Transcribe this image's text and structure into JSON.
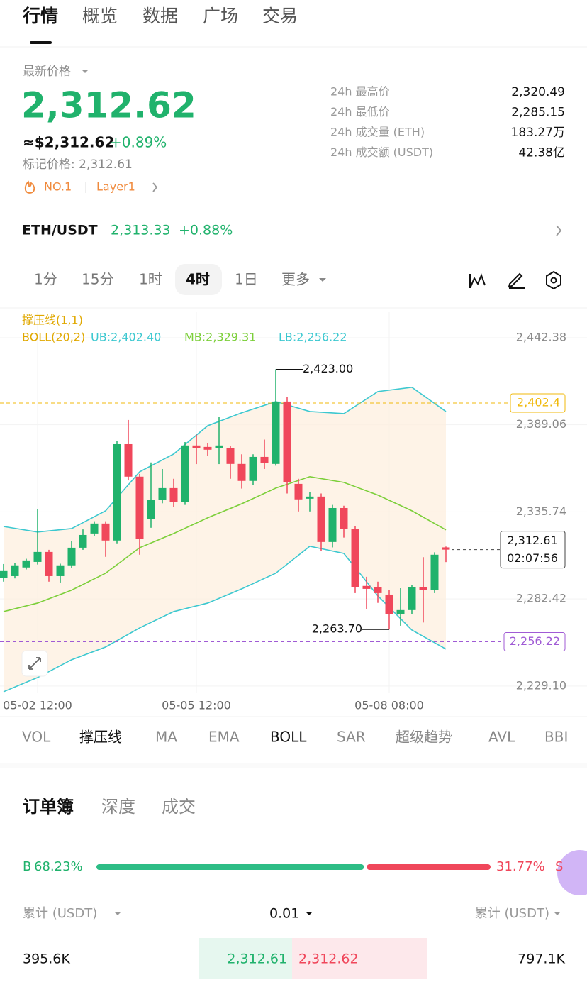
{
  "nav_tabs": [
    "行情",
    "概览",
    "数据",
    "广场",
    "交易"
  ],
  "ticker": {
    "label": "最新价格",
    "price": "2,312.62",
    "usd": "≈$2,312.62",
    "change": "+0.89%",
    "mark_price": "标记价格: 2,312.61",
    "rank": "NO.1",
    "tag": "Layer1"
  },
  "stats": [
    {
      "label": "24h 最高价",
      "value": "2,320.49"
    },
    {
      "label": "24h 最低价",
      "value": "2,285.15"
    },
    {
      "label": "24h 成交量 (ETH)",
      "value": "183.27万"
    },
    {
      "label": "24h 成交额 (USDT)",
      "value": "42.38亿"
    }
  ],
  "pair": {
    "name": "ETH/USDT",
    "price": "2,313.33",
    "change": "+0.88%"
  },
  "timeframes": [
    "1分",
    "15分",
    "1时",
    "4时",
    "1日",
    "更多"
  ],
  "chart_data": {
    "type": "candlestick",
    "legend": [
      "撑压线(1,1)",
      "BOLL(20,2)",
      "UB:2,402.40",
      "MB:2,329.31",
      "LB:2,256.22"
    ],
    "open": [
      2295.1,
      2296.4,
      2301.7,
      2305.1,
      2311.2,
      2296.4,
      2303.0,
      2313.8,
      2322.5,
      2328.6,
      2318.2,
      2377.2,
      2357.3,
      2331.2,
      2342.9,
      2350.3,
      2341.6,
      2376.4,
      2375.5,
      2374.6,
      2374.6,
      2365.1,
      2354.7,
      2369.4,
      2365.1,
      2403.3,
      2352.9,
      2343.8,
      2345.1,
      2317.3,
      2338.1,
      2325.1,
      2290.4,
      2289.5,
      2285.1,
      2273.0,
      2275.6,
      2289.5,
      2287.8,
      2314.0
    ],
    "high": [
      2303.8,
      2304.5,
      2307.0,
      2337.3,
      2312.5,
      2304.0,
      2318.0,
      2325.0,
      2330.0,
      2330.0,
      2379.0,
      2392.0,
      2359.0,
      2366.0,
      2362.0,
      2356.0,
      2378.5,
      2383.0,
      2378.0,
      2393.7,
      2376.0,
      2371.0,
      2371.0,
      2380.0,
      2423.0,
      2406.0,
      2356.0,
      2348.0,
      2347.0,
      2340.0,
      2339.5,
      2327.0,
      2296.0,
      2293.0,
      2288.0,
      2289.0,
      2291.0,
      2308.0,
      2311.0,
      2314.5
    ],
    "low": [
      2293.0,
      2295.0,
      2300.5,
      2303.5,
      2293.0,
      2292.5,
      2301.5,
      2312.5,
      2321.0,
      2308.2,
      2316.5,
      2355.0,
      2309.5,
      2326.0,
      2341.0,
      2338.6,
      2340.0,
      2365.0,
      2370.0,
      2365.0,
      2356.0,
      2350.0,
      2352.0,
      2362.0,
      2364.0,
      2347.0,
      2336.0,
      2336.0,
      2312.0,
      2314.0,
      2320.0,
      2286.0,
      2276.0,
      2280.0,
      2263.7,
      2266.0,
      2273.0,
      2268.0,
      2286.0,
      2305.0
    ],
    "close": [
      2299.5,
      2303.0,
      2306.0,
      2311.2,
      2296.4,
      2303.0,
      2313.8,
      2321.6,
      2328.6,
      2318.2,
      2377.2,
      2357.3,
      2319.0,
      2342.9,
      2350.3,
      2341.6,
      2376.4,
      2374.6,
      2373.8,
      2376.4,
      2365.1,
      2354.7,
      2369.4,
      2365.9,
      2403.3,
      2353.8,
      2343.4,
      2345.1,
      2317.3,
      2338.1,
      2325.1,
      2289.5,
      2288.6,
      2286.0,
      2273.0,
      2275.6,
      2289.5,
      2287.8,
      2309.5,
      2312.61
    ],
    "up_color": "#20b26c",
    "down_color": "#f0475b",
    "boll": {
      "x": [
        0,
        3,
        6,
        9,
        12,
        15,
        18,
        21,
        24,
        27,
        30,
        33,
        36,
        39
      ],
      "upper": [
        2326.8,
        2323.4,
        2325.5,
        2336.4,
        2360.3,
        2371.2,
        2388.5,
        2396.4,
        2403.3,
        2397.2,
        2395.9,
        2409.4,
        2412.0,
        2397.2
      ],
      "middle": [
        2274.7,
        2279.9,
        2287.8,
        2298.2,
        2313.8,
        2322.5,
        2332.1,
        2340.7,
        2350.3,
        2357.3,
        2353.8,
        2346.0,
        2336.4,
        2324.7
      ],
      "lower": [
        2225.6,
        2234.3,
        2245.2,
        2253.0,
        2264.7,
        2274.7,
        2279.9,
        2288.6,
        2298.2,
        2314.7,
        2310.3,
        2284.3,
        2263.4,
        2251.7
      ],
      "band_color": "#3cc8d0",
      "mid_color": "#7ccf3a"
    },
    "ylim": [
      2224.7,
      2458.0
    ],
    "yticks": [
      {
        "value": 2442.38,
        "label": "2,442.38"
      },
      {
        "value": 2389.06,
        "label": "2,389.06"
      },
      {
        "value": 2335.74,
        "label": "2,335.74"
      },
      {
        "value": 2282.42,
        "label": "2,282.42"
      },
      {
        "value": 2229.1,
        "label": "2,229.10"
      }
    ],
    "xticks": [
      {
        "value": 3,
        "label": "05-02 12:00"
      },
      {
        "value": 17,
        "label": "05-05 12:00"
      },
      {
        "value": 34,
        "label": "05-08 08:00"
      }
    ],
    "grid": true,
    "annotations": [
      {
        "value": 2423.0,
        "label": "2,423.00"
      },
      {
        "value": 2263.7,
        "label": "2,263.70"
      }
    ],
    "levels": [
      {
        "value": 2402.4,
        "label": "2,402.4",
        "color": "#f0b90b"
      },
      {
        "value": 2256.22,
        "label": "2,256.22",
        "color": "#a05bd5"
      }
    ],
    "last": {
      "value": 2312.61,
      "label": "2,312.61",
      "countdown": "02:07:56"
    }
  },
  "indicators": [
    "VOL",
    "撑压线",
    "MA",
    "EMA",
    "BOLL",
    "SAR",
    "超级趋势",
    "AVL",
    "BBI"
  ],
  "orderbook": {
    "tabs": [
      "订单簿",
      "深度",
      "成交"
    ],
    "buy": {
      "letter": "B",
      "value": 68.23,
      "label": "68.23%"
    },
    "sell": {
      "letter": "S",
      "value": 31.77,
      "label": "31.77%"
    },
    "headers": [
      "累计 (USDT)",
      "0.01",
      "累计 (USDT)"
    ],
    "row": [
      "395.6K",
      "2,312.61",
      "2,312.62",
      "797.1K"
    ]
  }
}
